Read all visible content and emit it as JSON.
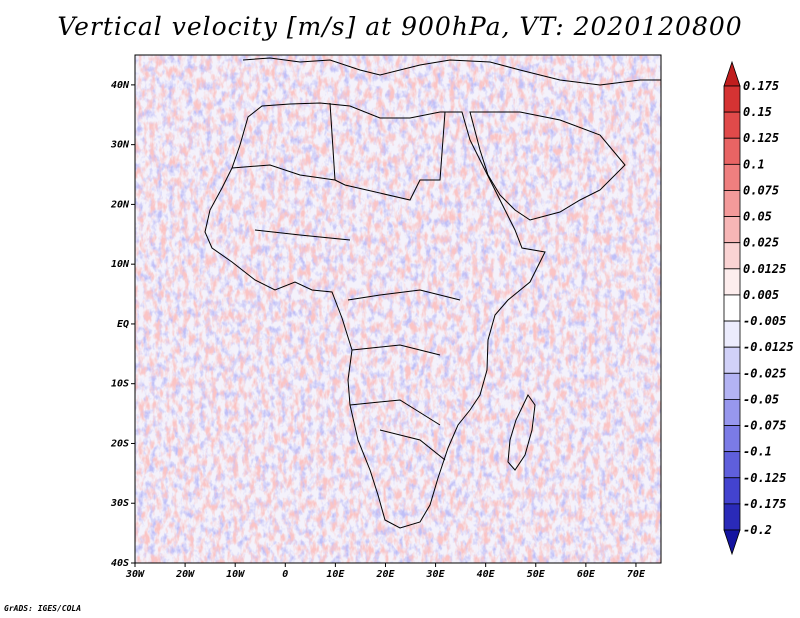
{
  "title": "Vertical velocity [m/s] at 900hPa, VT: 2020120800",
  "footer": "GrADS: IGES/COLA",
  "map": {
    "lon_range": [
      -30,
      75
    ],
    "lat_range": [
      -40,
      45
    ],
    "lat_ticks": [
      {
        "value": 40,
        "label": "40N"
      },
      {
        "value": 30,
        "label": "30N"
      },
      {
        "value": 20,
        "label": "20N"
      },
      {
        "value": 10,
        "label": "10N"
      },
      {
        "value": 0,
        "label": "EQ"
      },
      {
        "value": -10,
        "label": "10S"
      },
      {
        "value": -20,
        "label": "20S"
      },
      {
        "value": -30,
        "label": "30S"
      },
      {
        "value": -40,
        "label": "40S"
      }
    ],
    "lon_ticks": [
      {
        "value": -30,
        "label": "30W"
      },
      {
        "value": -20,
        "label": "20W"
      },
      {
        "value": -10,
        "label": "10W"
      },
      {
        "value": 0,
        "label": "0"
      },
      {
        "value": 10,
        "label": "10E"
      },
      {
        "value": 20,
        "label": "20E"
      },
      {
        "value": 30,
        "label": "30E"
      },
      {
        "value": 40,
        "label": "40E"
      },
      {
        "value": 50,
        "label": "50E"
      },
      {
        "value": 60,
        "label": "60E"
      },
      {
        "value": 70,
        "label": "70E"
      }
    ]
  },
  "colorbar": {
    "labels": [
      "0.175",
      "0.15",
      "0.125",
      "0.1",
      "0.075",
      "0.05",
      "0.025",
      "0.0125",
      "0.005",
      "-0.005",
      "-0.0125",
      "-0.025",
      "-0.05",
      "-0.075",
      "-0.1",
      "-0.125",
      "-0.175",
      "-0.2"
    ],
    "colors": [
      "#c01e1e",
      "#d53333",
      "#e04a4a",
      "#e86464",
      "#ef7f7f",
      "#f39a9a",
      "#f7b6b6",
      "#fad3d3",
      "#fdeded",
      "#ffffff",
      "#ececfd",
      "#d1d1f8",
      "#b3b3f3",
      "#9797ee",
      "#7b7be6",
      "#5f5fdc",
      "#4343cf",
      "#2a2ab8",
      "#1414a0"
    ]
  }
}
